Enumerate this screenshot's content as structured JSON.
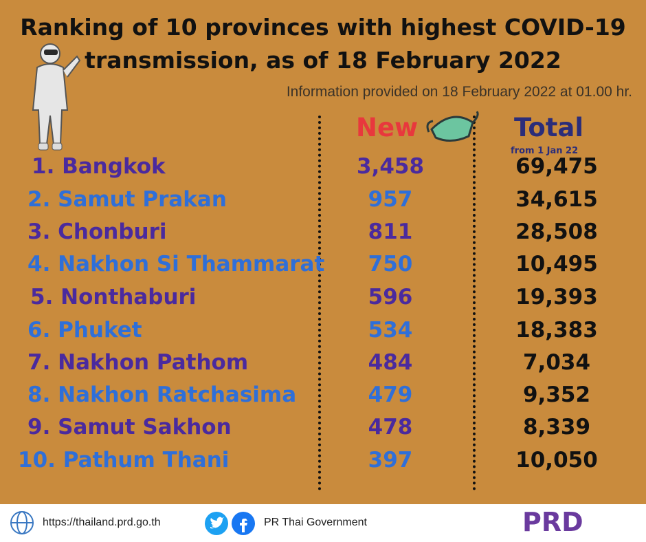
{
  "header": {
    "title_lines": [
      "Ranking of 10 provinces with highest COVID-19",
      "transmission, as of 18 February 2022"
    ],
    "subtitle": "Information provided on 18 February 2022 at 01.00 hr."
  },
  "table": {
    "columns": {
      "new": "New",
      "total": "Total",
      "total_note": "from 1 Jan 22"
    },
    "rows": [
      [
        "1. Bangkok",
        "3,458",
        "69,475"
      ],
      [
        "2. Samut Prakan",
        "957",
        "34,615"
      ],
      [
        "3. Chonburi",
        "811",
        "28,508"
      ],
      [
        "4. Nakhon Si Thammarat",
        "750",
        "10,495"
      ],
      [
        "5. Nonthaburi",
        "596",
        "19,393"
      ],
      [
        "6. Phuket",
        "534",
        "18,383"
      ],
      [
        "7. Nakhon Pathom",
        "484",
        "7,034"
      ],
      [
        "8. Nakhon Ratchasima",
        "479",
        "9,352"
      ],
      [
        "9. Samut Sakhon",
        "478",
        "8,339"
      ],
      [
        "10. Pathum Thani",
        "397",
        "10,050"
      ]
    ]
  },
  "footer": {
    "website": "https://thailand.prd.go.th",
    "social": "PR Thai Government",
    "logo": "PRD"
  }
}
